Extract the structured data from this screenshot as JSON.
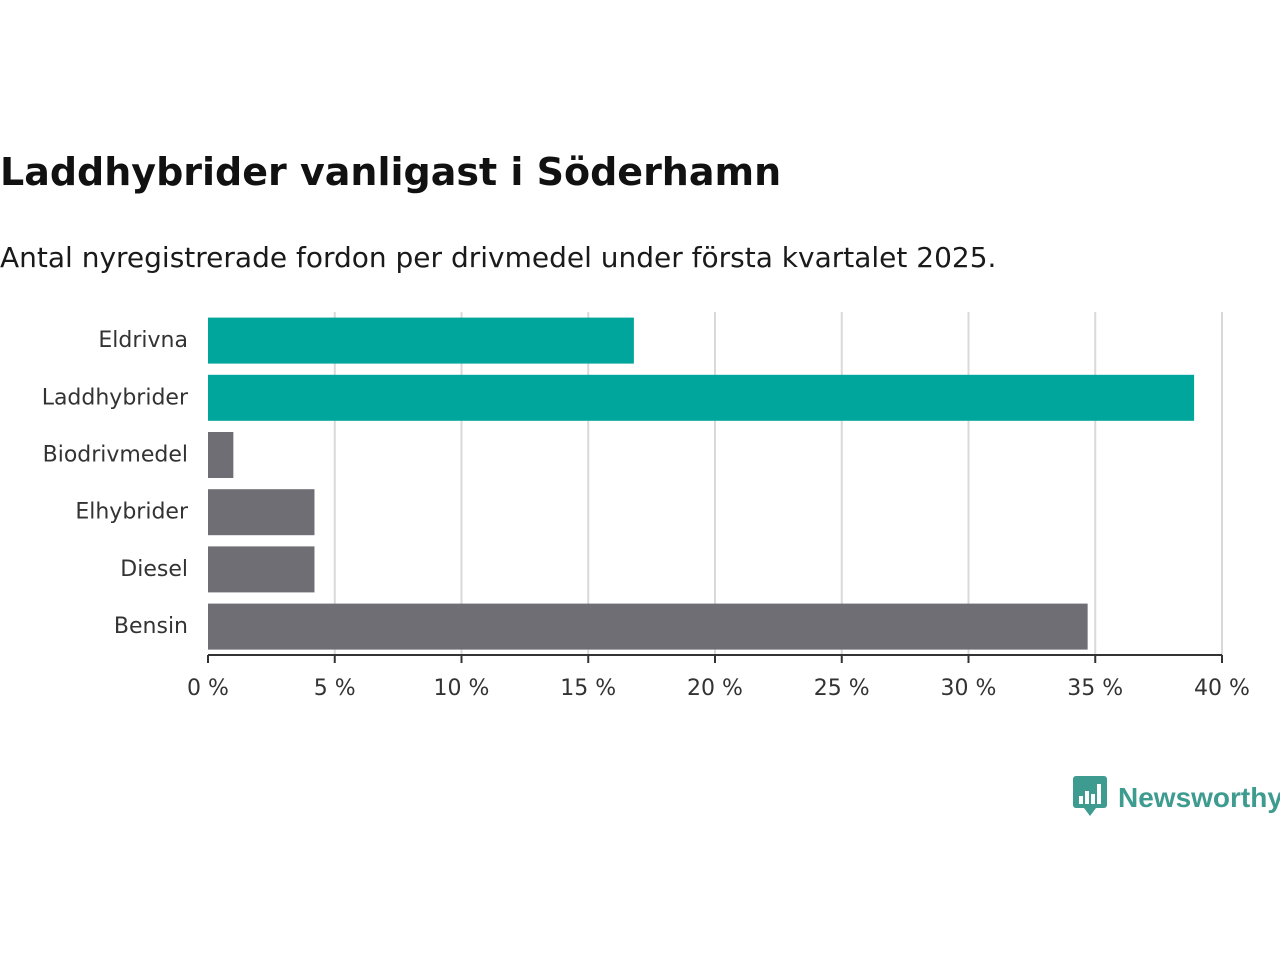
{
  "title": "Laddhybrider vanligast i Söderhamn",
  "subtitle": "Antal nyregistrerade fordon per drivmedel under första kvartalet 2025.",
  "brand": {
    "name": "Newsworthy",
    "icon": "newsworthy-logo-icon",
    "color": "#3e9b8f"
  },
  "colors": {
    "highlight": "#00a59b",
    "default": "#6f6e75",
    "grid": "#d9d9d9",
    "axis": "#333333"
  },
  "chart_data": {
    "type": "bar",
    "orientation": "horizontal",
    "categories": [
      "Eldrivna",
      "Laddhybrider",
      "Biodrivmedel",
      "Elhybrider",
      "Diesel",
      "Bensin"
    ],
    "values": [
      16.8,
      38.9,
      1.0,
      4.2,
      4.2,
      34.7
    ],
    "highlighted": [
      true,
      true,
      false,
      false,
      false,
      false
    ],
    "unit": "%",
    "xlim": [
      0,
      40
    ],
    "ticks": [
      0,
      5,
      10,
      15,
      20,
      25,
      30,
      35,
      40
    ],
    "tick_labels": [
      "0 %",
      "5 %",
      "10 %",
      "15 %",
      "20 %",
      "25 %",
      "30 %",
      "35 %",
      "40 %"
    ],
    "grid": true,
    "legend": "none",
    "xlabel": "",
    "ylabel": ""
  }
}
